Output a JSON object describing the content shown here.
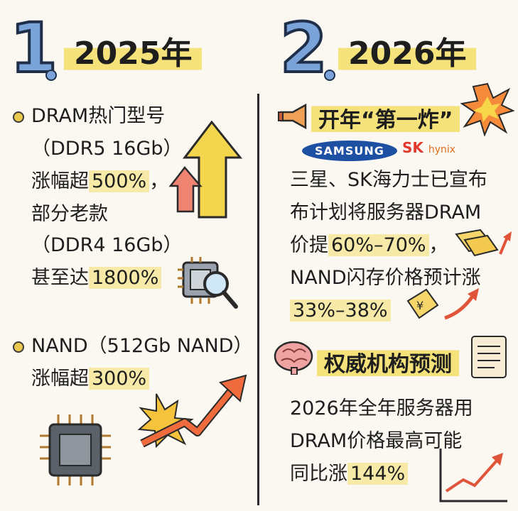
{
  "left": {
    "number": "1",
    "year": "2025年",
    "dram": {
      "title": "DRAM热门型号",
      "model": "（DDR5 16Gb）",
      "rise_prefix": "涨幅超",
      "rise_value": "500%",
      "rise_suffix": "，",
      "old_label": "部分老款",
      "old_model": "（DDR4 16Gb）",
      "old_prefix": "甚至达",
      "old_value": "1800%"
    },
    "nand": {
      "title": "NAND（512Gb NAND）",
      "rise_prefix": "涨幅超",
      "rise_value": "300%"
    }
  },
  "right": {
    "number": "2",
    "year": "2026年",
    "section1": {
      "heading": "开年“第一炸”",
      "logo_samsung": "SAMSUNG",
      "logo_sk": "SK",
      "logo_hynix": "hynix",
      "line1": "三星、SK海力士已宣布",
      "line2": "布计划将服务器DRAM",
      "line3_prefix": "价提",
      "line3_value": "60%–70%",
      "line3_suffix": "，",
      "line4": "NAND闪存价格预计涨",
      "line5_value": "33%–38%"
    },
    "section2": {
      "heading": "权威机构预测",
      "line1": "2026年全年服务器用",
      "line2": "DRAM价格最高可能",
      "line3_prefix": "同比涨",
      "line3_value": "144%"
    }
  }
}
